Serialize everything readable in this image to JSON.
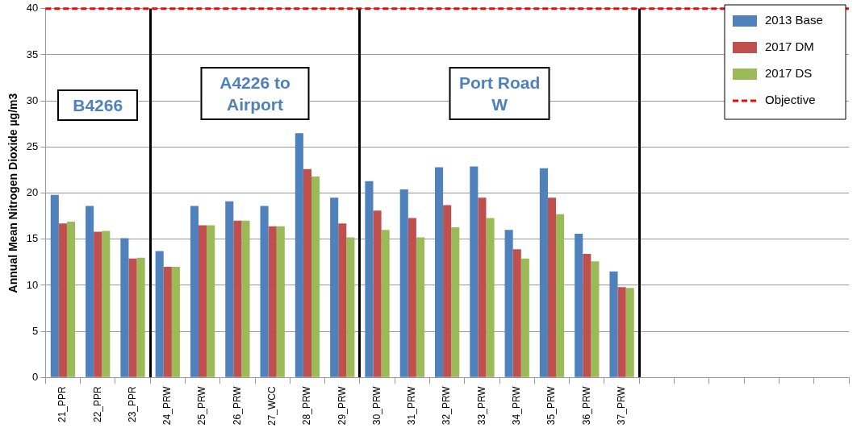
{
  "chart_data": {
    "type": "bar",
    "ylabel": "Annual Mean Nitrogen Dioxide µg/m3",
    "categories": [
      "21_PPR",
      "22_PPR",
      "23_PPR",
      "24_PRW",
      "25_PRW",
      "26_PRW",
      "27_WCC",
      "28_PRW",
      "29_PRW",
      "30_PRW",
      "31_PRW",
      "32_PRW",
      "33_PRW",
      "34_PRW",
      "35_PRW",
      "36_PRW",
      "37_PRW",
      null,
      null,
      null,
      null,
      null,
      null
    ],
    "series": [
      {
        "name": "2013 Base",
        "color": "#4f81bd",
        "values": [
          19.8,
          18.6,
          15.1,
          13.7,
          18.6,
          19.1,
          18.6,
          26.5,
          19.5,
          21.3,
          20.4,
          22.8,
          22.9,
          16.0,
          22.7,
          15.6,
          11.5,
          null,
          null,
          null,
          null,
          null,
          null
        ]
      },
      {
        "name": "2017 DM",
        "color": "#c0504d",
        "values": [
          16.7,
          15.8,
          12.9,
          12.0,
          16.5,
          17.0,
          16.4,
          22.6,
          16.7,
          18.1,
          17.3,
          18.7,
          19.5,
          13.9,
          19.5,
          13.4,
          9.8,
          null,
          null,
          null,
          null,
          null,
          null
        ]
      },
      {
        "name": "2017 DS",
        "color": "#9bbb59",
        "values": [
          16.9,
          15.9,
          13.0,
          12.0,
          16.5,
          17.0,
          16.4,
          21.8,
          15.2,
          16.0,
          15.2,
          16.3,
          17.3,
          12.9,
          17.7,
          12.6,
          9.7,
          null,
          null,
          null,
          null,
          null,
          null
        ]
      }
    ],
    "ylim": [
      0,
      40
    ],
    "yticks": [
      0,
      5,
      10,
      15,
      20,
      25,
      30,
      35,
      40
    ],
    "grid": "y",
    "legend": "top right",
    "ref_lines": [
      {
        "axis": "y",
        "value": 40,
        "label": "Objective",
        "color": "#ff0000",
        "line_style": "dashed"
      }
    ],
    "annotations": [
      "B4266",
      "A4226 to Airport",
      "Port Road W"
    ]
  }
}
